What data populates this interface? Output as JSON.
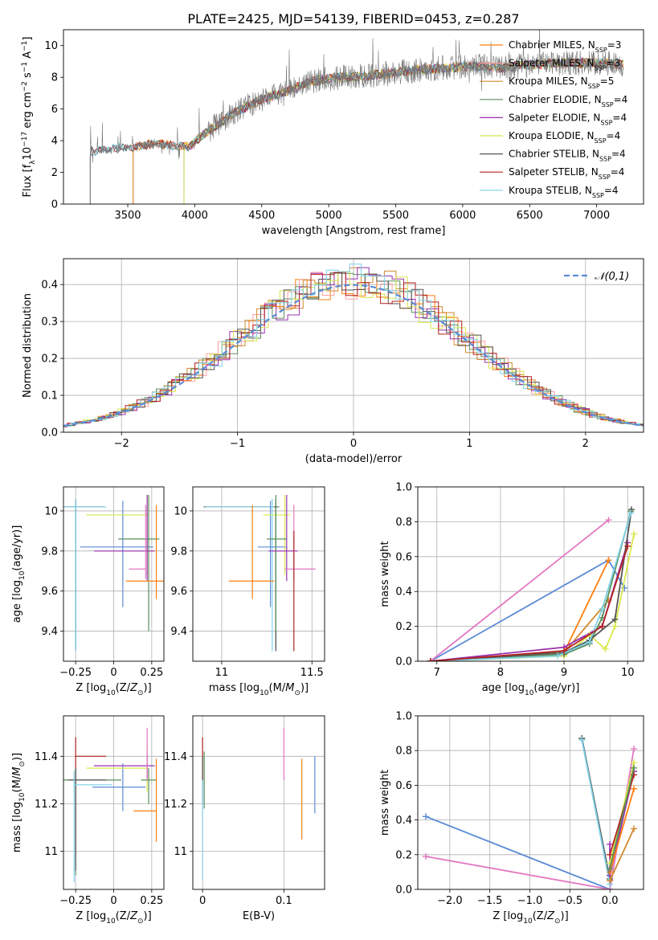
{
  "figure_title": "PLATE=2425, MJD=54139, FIBERID=0453, z=0.287",
  "models": [
    {
      "name": "Chabrier MILES",
      "nssp": "3",
      "color": "#ff7f0e"
    },
    {
      "name": "Salpeter MILES",
      "nssp": "3",
      "color": "#ffa0a0"
    },
    {
      "name": "Kroupa MILES",
      "nssp": "5",
      "color": "#d08a2e"
    },
    {
      "name": "Chabrier ELODIE",
      "nssp": "4",
      "color": "#5b8f5b"
    },
    {
      "name": "Salpeter ELODIE",
      "nssp": "4",
      "color": "#9b30b0"
    },
    {
      "name": "Kroupa ELODIE",
      "nssp": "4",
      "color": "#d8e84a"
    },
    {
      "name": "Chabrier STELIB",
      "nssp": "4",
      "color": "#555555"
    },
    {
      "name": "Salpeter STELIB",
      "nssp": "4",
      "color": "#b22222"
    },
    {
      "name": "Kroupa STELIB",
      "nssp": "4",
      "color": "#7fd0e8"
    }
  ],
  "chart_data": [
    {
      "id": "spectrum",
      "type": "line",
      "xlabel": "wavelength [Angstrom, rest frame]",
      "ylabel": "Flux [f_λ10^-17 erg cm^-2 s^-1 A^-1]",
      "xlim": [
        3020,
        7350
      ],
      "ylim": [
        0,
        11
      ],
      "xticks": [
        3500,
        4000,
        4500,
        5000,
        5500,
        6000,
        6500,
        7000
      ],
      "yticks": [
        0,
        2,
        4,
        6,
        8,
        10
      ],
      "data_color": "#777777",
      "data_start": 3220,
      "model_starts": {
        "Chabrier MILES": 3540,
        "Salpeter MILES": 3540,
        "Kroupa MILES": 3540,
        "Chabrier ELODIE": 3920,
        "Salpeter ELODIE": 3920,
        "Kroupa ELODIE": 3920,
        "Chabrier STELIB": 3220,
        "Salpeter STELIB": 3220,
        "Kroupa STELIB": 3220
      },
      "continuum_points": [
        [
          3220,
          3.3
        ],
        [
          3400,
          3.5
        ],
        [
          3700,
          3.8
        ],
        [
          3950,
          3.6
        ],
        [
          4100,
          4.6
        ],
        [
          4300,
          5.8
        ],
        [
          4500,
          6.6
        ],
        [
          4700,
          7.2
        ],
        [
          4900,
          7.8
        ],
        [
          5100,
          8.0
        ],
        [
          5300,
          8.1
        ],
        [
          5500,
          8.3
        ],
        [
          5700,
          8.5
        ],
        [
          5900,
          8.6
        ],
        [
          6100,
          8.7
        ],
        [
          6300,
          8.6
        ],
        [
          6500,
          8.8
        ],
        [
          6800,
          8.9
        ],
        [
          7000,
          8.9
        ],
        [
          7200,
          8.8
        ]
      ]
    },
    {
      "id": "residuals",
      "type": "histogram",
      "xlabel": "(data-model)/error",
      "ylabel": "Normed distribution",
      "xlim": [
        -2.5,
        2.5
      ],
      "ylim": [
        0,
        0.47
      ],
      "xticks": [
        -2,
        -1,
        0,
        1,
        2
      ],
      "yticks": [
        0.0,
        0.1,
        0.2,
        0.3,
        0.4
      ],
      "grid": true,
      "reference_label": "𝒩(0,1)",
      "reference_color": "#5a8bd6",
      "bin_width": 0.1
    },
    {
      "id": "age_vs_Z",
      "type": "errorbar",
      "xlabel": "Z [log10(Z/Z☉)]",
      "ylabel": "age [log10(age/yr)]",
      "xlim": [
        -0.33,
        0.33
      ],
      "ylim": [
        9.25,
        10.12
      ],
      "xticks": [
        -0.25,
        0.0,
        0.25
      ],
      "yticks": [
        9.4,
        9.6,
        9.8,
        10.0
      ],
      "grid": true,
      "points": [
        {
          "color": "#5b8f5b",
          "x": -0.25,
          "y": 10.02,
          "xerr": [
            0.18,
            0.2
          ],
          "yerr": [
            0.7,
            0.03
          ]
        },
        {
          "color": "#555555",
          "x": -0.25,
          "y": 10.02,
          "xerr": [
            0.2,
            0.18
          ],
          "yerr": [
            0.72,
            0.04
          ]
        },
        {
          "color": "#7fd0e8",
          "x": -0.25,
          "y": 10.02,
          "xerr": [
            0.2,
            0.2
          ],
          "yerr": [
            0.72,
            0.04
          ]
        },
        {
          "color": "#5a8bd6",
          "x": 0.06,
          "y": 9.82,
          "xerr": [
            0.28,
            0.2
          ],
          "yerr": [
            0.3,
            0.23
          ]
        },
        {
          "color": "#d8e84a",
          "x": 0.22,
          "y": 9.98,
          "xerr": [
            0.4,
            0.0
          ],
          "yerr": [
            0.3,
            0.1
          ]
        },
        {
          "color": "#5b8f5b",
          "x": 0.23,
          "y": 9.86,
          "xerr": [
            0.2,
            0.07
          ],
          "yerr": [
            0.46,
            0.22
          ]
        },
        {
          "color": "#9b30b0",
          "x": 0.22,
          "y": 9.8,
          "xerr": [
            0.35,
            0.05
          ],
          "yerr": [
            0.15,
            0.28
          ]
        },
        {
          "color": "#e377c2",
          "x": 0.21,
          "y": 9.71,
          "xerr": [
            0.11,
            0.0
          ],
          "yerr": [
            0.05,
            0.32
          ]
        },
        {
          "color": "#ff7f0e",
          "x": 0.28,
          "y": 9.65,
          "xerr": [
            0.2,
            0.05
          ],
          "yerr": [
            0.09,
            0.38
          ]
        }
      ]
    },
    {
      "id": "age_vs_mass",
      "type": "errorbar",
      "xlabel": "mass [log10(M/M☉)]",
      "xlim": [
        10.84,
        11.57
      ],
      "ylim": [
        9.25,
        10.12
      ],
      "xticks": [
        11.0,
        11.5
      ],
      "yticks": [
        9.4,
        9.6,
        9.8,
        10.0
      ],
      "grid": true,
      "points": [
        {
          "color": "#5b8f5b",
          "x": 11.3,
          "y": 10.02,
          "xerr": [
            0.38,
            0.02
          ],
          "yerr": [
            0.7,
            0.03
          ]
        },
        {
          "color": "#555555",
          "x": 11.3,
          "y": 10.02,
          "xerr": [
            0.4,
            0.01
          ],
          "yerr": [
            0.72,
            0.04
          ]
        },
        {
          "color": "#7fd0e8",
          "x": 11.28,
          "y": 10.02,
          "xerr": [
            0.37,
            0.01
          ],
          "yerr": [
            0.72,
            0.04
          ]
        },
        {
          "color": "#5a8bd6",
          "x": 11.27,
          "y": 9.82,
          "xerr": [
            0.07,
            0.09
          ],
          "yerr": [
            0.3,
            0.23
          ]
        },
        {
          "color": "#d8e84a",
          "x": 11.35,
          "y": 9.98,
          "xerr": [
            0.12,
            0.03
          ],
          "yerr": [
            0.3,
            0.1
          ]
        },
        {
          "color": "#5b8f5b",
          "x": 11.3,
          "y": 9.86,
          "xerr": [
            0.05,
            0.06
          ],
          "yerr": [
            0.46,
            0.22
          ]
        },
        {
          "color": "#9b30b0",
          "x": 11.36,
          "y": 9.8,
          "xerr": [
            0.1,
            0.06
          ],
          "yerr": [
            0.15,
            0.28
          ]
        },
        {
          "color": "#e377c2",
          "x": 11.4,
          "y": 9.71,
          "xerr": [
            0.05,
            0.12
          ],
          "yerr": [
            0.05,
            0.32
          ]
        },
        {
          "color": "#ff7f0e",
          "x": 11.17,
          "y": 9.65,
          "xerr": [
            0.13,
            0.12
          ],
          "yerr": [
            0.09,
            0.38
          ]
        },
        {
          "color": "#b22222",
          "x": 11.4,
          "y": 9.8,
          "xerr": [
            0.0,
            0.0
          ],
          "yerr": [
            0.5,
            0.1
          ]
        }
      ]
    },
    {
      "id": "weight_vs_age",
      "type": "line",
      "xlabel": "age [log10(age/yr)]",
      "ylabel": "mass weight",
      "xlim": [
        6.7,
        10.25
      ],
      "ylim": [
        0,
        1.0
      ],
      "xticks": [
        7,
        8,
        9,
        10
      ],
      "yticks": [
        0.0,
        0.2,
        0.4,
        0.6,
        0.8,
        1.0
      ],
      "grid": true,
      "series": [
        {
          "color": "#5a8bd6",
          "x": [
            6.9,
            9.7,
            9.95
          ],
          "y": [
            0.0,
            0.58,
            0.42
          ]
        },
        {
          "color": "#e377c2",
          "x": [
            6.9,
            9.7
          ],
          "y": [
            0.0,
            0.81
          ]
        },
        {
          "color": "#ff7f0e",
          "x": [
            6.9,
            9.0,
            9.7
          ],
          "y": [
            0.0,
            0.05,
            0.58
          ]
        },
        {
          "color": "#d08a2e",
          "x": [
            6.9,
            9.0,
            9.7
          ],
          "y": [
            0.0,
            0.05,
            0.35
          ]
        },
        {
          "color": "#9b30b0",
          "x": [
            6.9,
            9.0,
            9.6,
            10.0
          ],
          "y": [
            0.0,
            0.08,
            0.2,
            0.68
          ]
        },
        {
          "color": "#d8e84a",
          "x": [
            6.9,
            9.0,
            9.4,
            9.65,
            9.8,
            10.1
          ],
          "y": [
            0.0,
            0.03,
            0.15,
            0.07,
            0.2,
            0.73
          ]
        },
        {
          "color": "#5b8f5b",
          "x": [
            6.9,
            9.0,
            9.4,
            9.6,
            10.05
          ],
          "y": [
            0.0,
            0.04,
            0.1,
            0.25,
            0.86
          ]
        },
        {
          "color": "#555555",
          "x": [
            6.9,
            9.0,
            9.4,
            9.8,
            10.06
          ],
          "y": [
            0.0,
            0.05,
            0.12,
            0.24,
            0.87
          ]
        },
        {
          "color": "#7fd0e8",
          "x": [
            6.9,
            8.9,
            9.4,
            9.6,
            10.05
          ],
          "y": [
            0.0,
            0.03,
            0.11,
            0.3,
            0.85
          ]
        },
        {
          "color": "#b22222",
          "x": [
            6.9,
            9.0,
            9.6,
            10.0
          ],
          "y": [
            0.0,
            0.06,
            0.2,
            0.66
          ]
        }
      ]
    },
    {
      "id": "mass_vs_Z",
      "type": "errorbar",
      "xlabel": "Z [log10(Z/Z☉)]",
      "ylabel": "mass [log10(M/M☉)]",
      "xlim": [
        -0.33,
        0.33
      ],
      "ylim": [
        10.84,
        11.57
      ],
      "xticks": [
        -0.25,
        0.0,
        0.25
      ],
      "yticks": [
        11.0,
        11.2,
        11.4
      ],
      "grid": true,
      "points": [
        {
          "color": "#b22222",
          "x": -0.25,
          "y": 11.4,
          "xerr": [
            0.0,
            0.2
          ],
          "yerr": [
            0.42,
            0.08
          ]
        },
        {
          "color": "#5b8f5b",
          "x": -0.25,
          "y": 11.3,
          "xerr": [
            0.08,
            0.3
          ],
          "yerr": [
            0.4,
            0.05
          ]
        },
        {
          "color": "#555555",
          "x": -0.25,
          "y": 11.3,
          "xerr": [
            0.05,
            0.2
          ],
          "yerr": [
            0.38,
            0.05
          ]
        },
        {
          "color": "#7fd0e8",
          "x": -0.26,
          "y": 11.28,
          "xerr": [
            0.0,
            0.25
          ],
          "yerr": [
            0.41,
            0.06
          ]
        },
        {
          "color": "#5a8bd6",
          "x": 0.06,
          "y": 11.27,
          "xerr": [
            0.2,
            0.15
          ],
          "yerr": [
            0.1,
            0.1
          ]
        },
        {
          "color": "#d8e84a",
          "x": 0.22,
          "y": 11.35,
          "xerr": [
            0.4,
            0.0
          ],
          "yerr": [
            0.1,
            0.1
          ]
        },
        {
          "color": "#9b30b0",
          "x": 0.22,
          "y": 11.36,
          "xerr": [
            0.35,
            0.05
          ],
          "yerr": [
            0.05,
            0.05
          ]
        },
        {
          "color": "#5b8f5b",
          "x": 0.23,
          "y": 11.3,
          "xerr": [
            0.05,
            0.05
          ],
          "yerr": [
            0.1,
            0.05
          ]
        },
        {
          "color": "#e377c2",
          "x": 0.22,
          "y": 11.4,
          "xerr": [
            0.0,
            0.0
          ],
          "yerr": [
            0.1,
            0.12
          ]
        },
        {
          "color": "#ff7f0e",
          "x": 0.28,
          "y": 11.17,
          "xerr": [
            0.15,
            0.0
          ],
          "yerr": [
            0.13,
            0.22
          ]
        }
      ]
    },
    {
      "id": "mass_vs_ebv",
      "type": "errorbar",
      "xlabel": "E(B-V)",
      "xlim": [
        -0.012,
        0.15
      ],
      "ylim": [
        10.84,
        11.57
      ],
      "xticks": [
        0.0,
        0.1
      ],
      "yticks": [
        11.0,
        11.2,
        11.4
      ],
      "grid": true,
      "points": [
        {
          "color": "#b22222",
          "x": 0.0,
          "y": 11.4,
          "xerr": [
            0.0,
            0.0
          ],
          "yerr": [
            0.1,
            0.08
          ]
        },
        {
          "color": "#5b8f5b",
          "x": 0.002,
          "y": 11.3,
          "xerr": [
            0.0,
            0.0
          ],
          "yerr": [
            0.12,
            0.12
          ]
        },
        {
          "color": "#555555",
          "x": 0.0,
          "y": 11.3,
          "xerr": [
            0.0,
            0.0
          ],
          "yerr": [
            0.1,
            0.1
          ]
        },
        {
          "color": "#7fd0e8",
          "x": 0.0,
          "y": 11.2,
          "xerr": [
            0.0,
            0.0
          ],
          "yerr": [
            0.32,
            0.1
          ]
        },
        {
          "color": "#e377c2",
          "x": 0.1,
          "y": 11.4,
          "xerr": [
            0.0,
            0.0
          ],
          "yerr": [
            0.1,
            0.12
          ]
        },
        {
          "color": "#ff7f0e",
          "x": 0.122,
          "y": 11.17,
          "xerr": [
            0.0,
            0.0
          ],
          "yerr": [
            0.12,
            0.22
          ]
        },
        {
          "color": "#5a8bd6",
          "x": 0.138,
          "y": 11.28,
          "xerr": [
            0.0,
            0.0
          ],
          "yerr": [
            0.12,
            0.12
          ]
        }
      ]
    },
    {
      "id": "weight_vs_Z",
      "type": "line",
      "xlabel": "Z [log10(Z/Z☉)]",
      "ylabel": "mass weight",
      "xlim": [
        -2.4,
        0.42
      ],
      "ylim": [
        0,
        1.0
      ],
      "xticks": [
        -2.0,
        -1.5,
        -1.0,
        -0.5,
        0.0
      ],
      "yticks": [
        0.0,
        0.2,
        0.4,
        0.6,
        0.8,
        1.0
      ],
      "grid": true,
      "series": [
        {
          "color": "#5a8bd6",
          "x": [
            -2.3,
            0.0
          ],
          "y": [
            0.42,
            0.0
          ]
        },
        {
          "color": "#e377c2",
          "x": [
            -2.3,
            0.0,
            0.3
          ],
          "y": [
            0.19,
            0.0,
            0.81
          ]
        },
        {
          "color": "#5b8f5b",
          "x": [
            -0.35,
            0.0
          ],
          "y": [
            0.87,
            0.05
          ]
        },
        {
          "color": "#555555",
          "x": [
            -0.35,
            0.0
          ],
          "y": [
            0.87,
            0.06
          ]
        },
        {
          "color": "#7fd0e8",
          "x": [
            -0.35,
            0.0
          ],
          "y": [
            0.86,
            0.03
          ]
        },
        {
          "color": "#9b30b0",
          "x": [
            0.0,
            0.0,
            0.3
          ],
          "y": [
            0.26,
            0.08,
            0.68
          ]
        },
        {
          "color": "#d8e84a",
          "x": [
            0.0,
            0.3
          ],
          "y": [
            0.15,
            0.73
          ]
        },
        {
          "color": "#ff7f0e",
          "x": [
            0.0,
            0.3
          ],
          "y": [
            0.1,
            0.58
          ]
        },
        {
          "color": "#d08a2e",
          "x": [
            0.0,
            0.3
          ],
          "y": [
            0.05,
            0.35
          ]
        },
        {
          "color": "#b22222",
          "x": [
            0.0,
            0.3
          ],
          "y": [
            0.2,
            0.66
          ]
        },
        {
          "color": "#5b8f5b",
          "x": [
            0.0,
            0.3
          ],
          "y": [
            0.12,
            0.7
          ]
        }
      ]
    }
  ]
}
